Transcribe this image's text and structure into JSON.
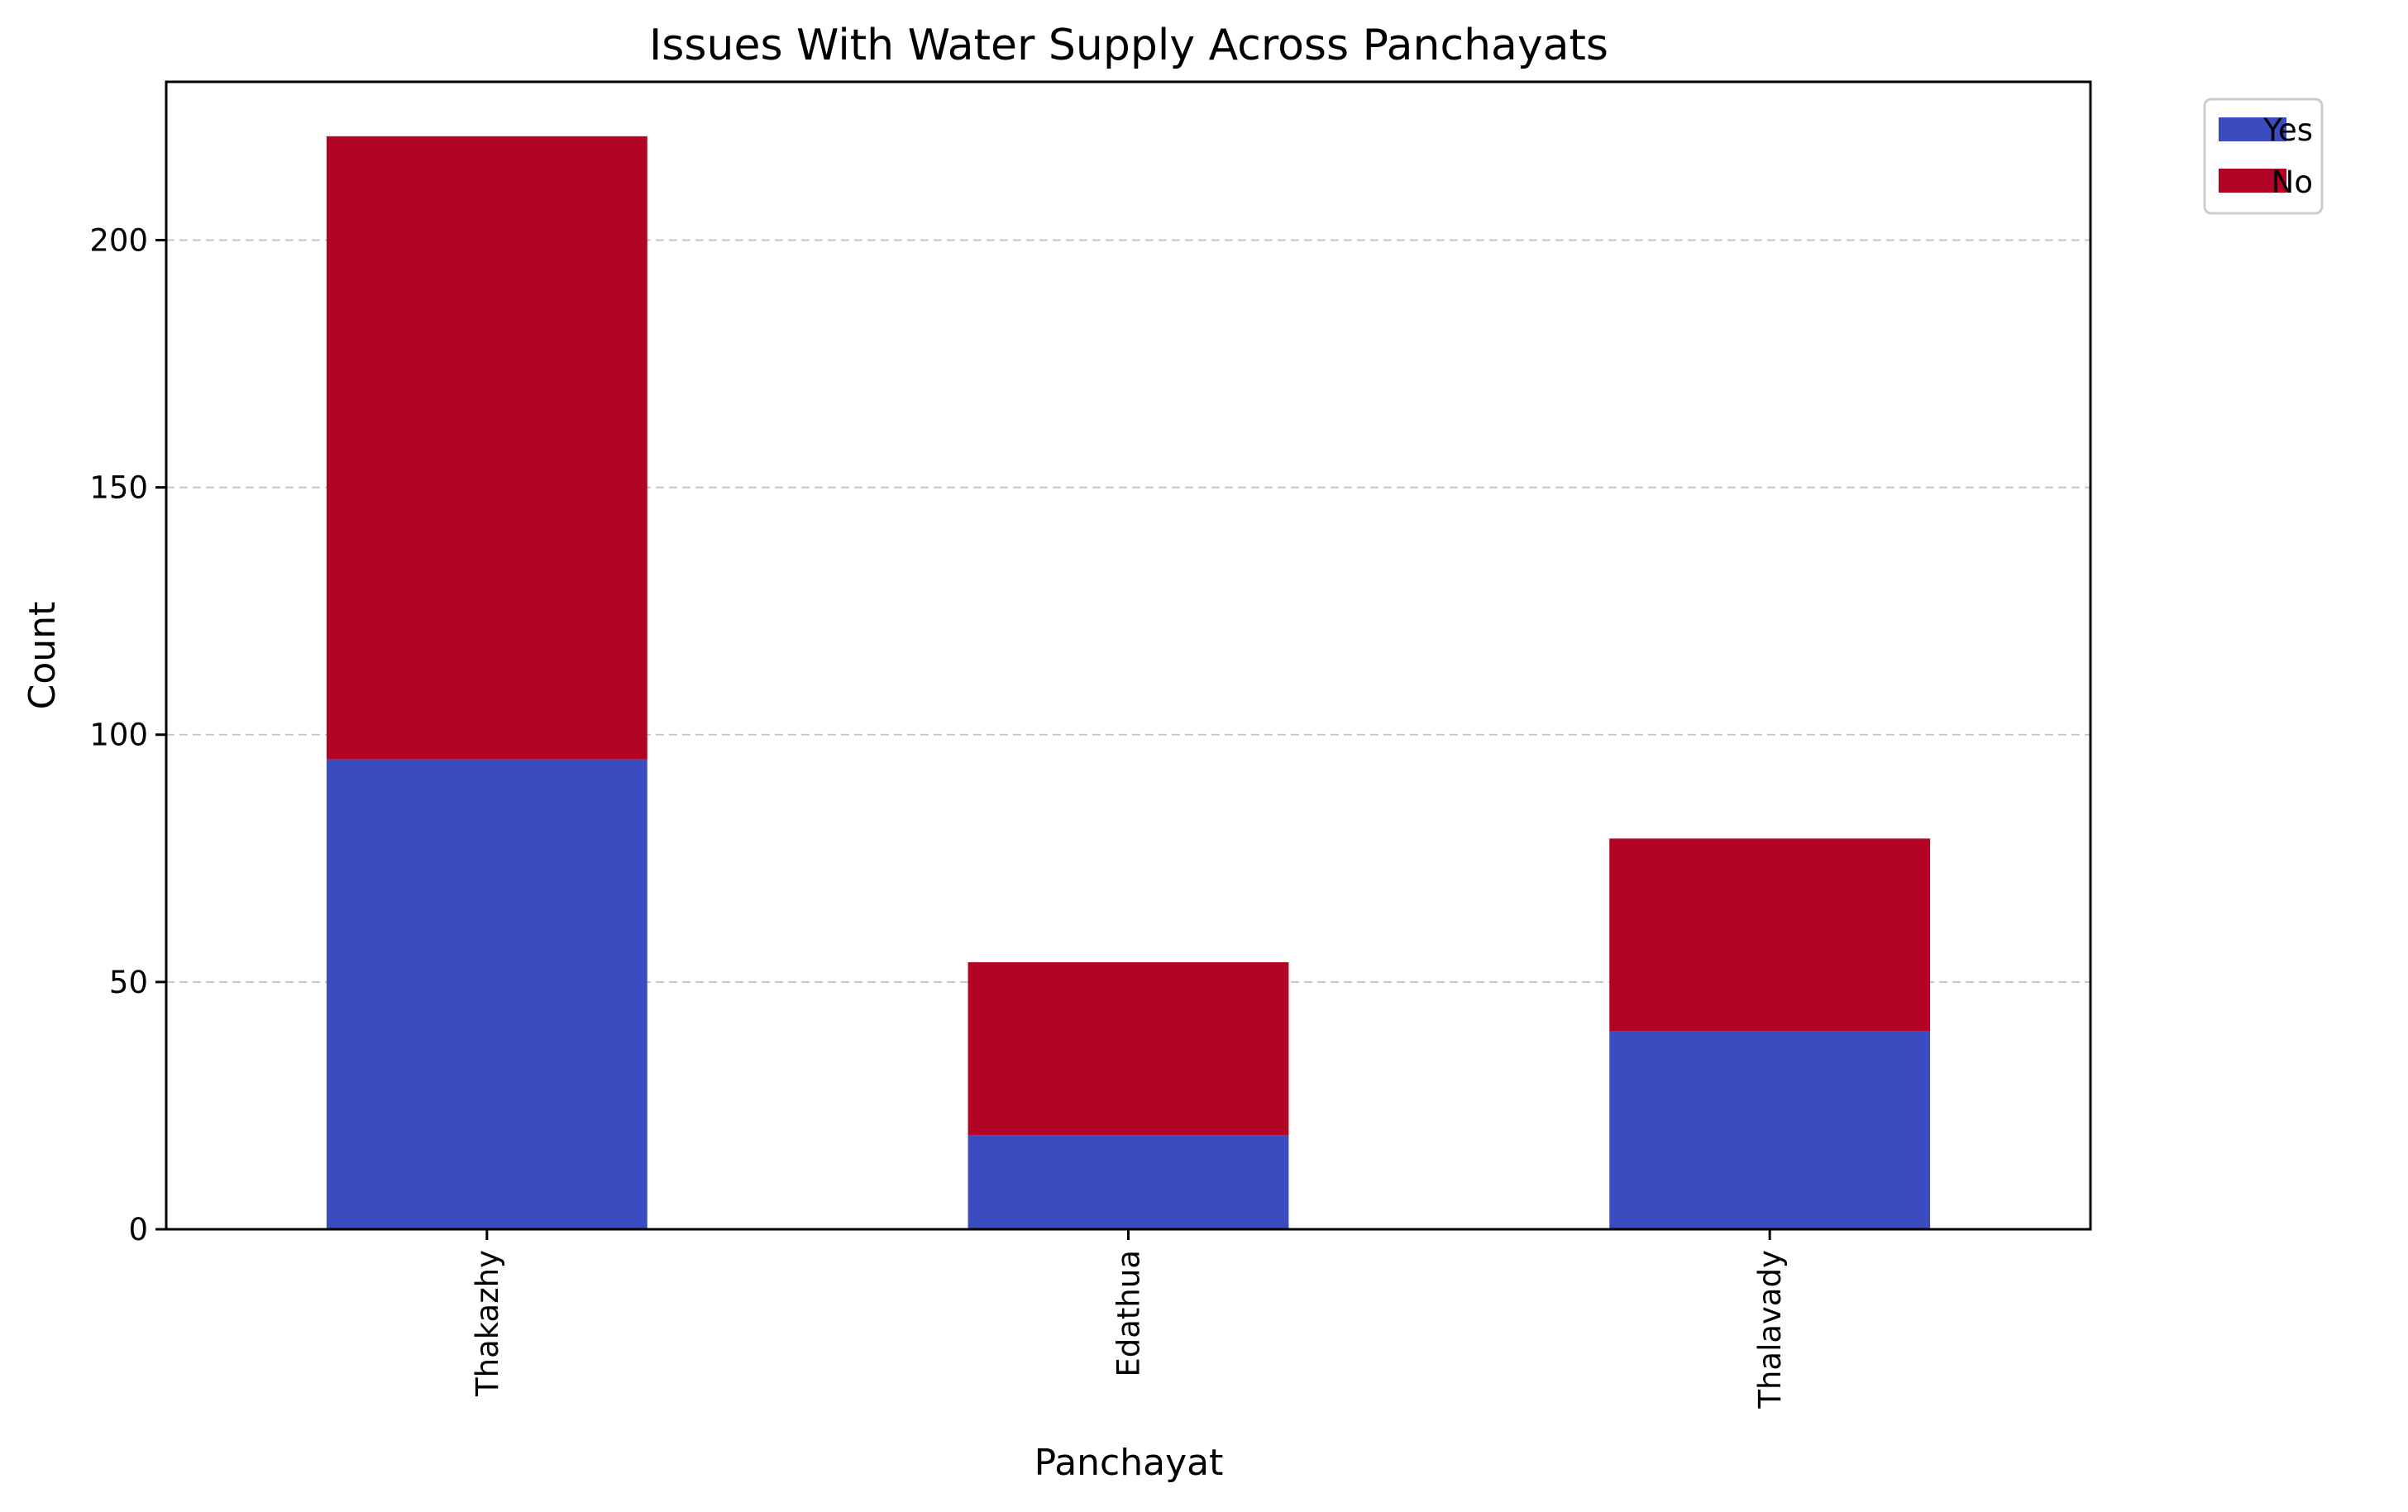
{
  "chart_data": {
    "type": "bar",
    "stacked": true,
    "title": "Issues With Water Supply Across Panchayats",
    "xlabel": "Panchayat",
    "ylabel": "Count",
    "categories": [
      "Thakazhy",
      "Edathua",
      "Thalavady"
    ],
    "series": [
      {
        "name": "Yes",
        "values": [
          95,
          19,
          40
        ],
        "color": "#3b4cc0"
      },
      {
        "name": "No",
        "values": [
          126,
          35,
          39
        ],
        "color": "#b40426"
      }
    ],
    "ylim": [
      0,
      232
    ],
    "yticks": [
      0,
      50,
      100,
      150,
      200
    ],
    "grid": {
      "y": true,
      "style": "dashed"
    },
    "legend_position": "outside-top-right",
    "x_tick_rotation": "vertical"
  }
}
